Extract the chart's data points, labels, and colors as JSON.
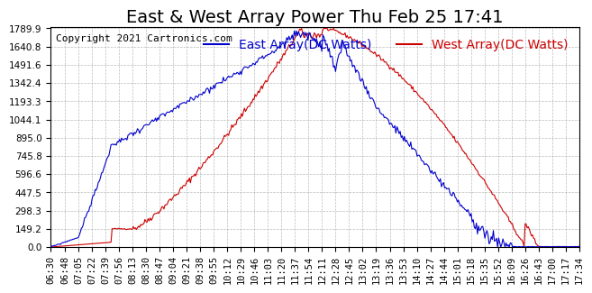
{
  "title": "East & West Array Power Thu Feb 25 17:41",
  "copyright": "Copyright 2021 Cartronics.com",
  "east_label": "East Array(DC Watts)",
  "west_label": "West Array(DC Watts)",
  "east_color": "#0000cc",
  "west_color": "#cc0000",
  "background_color": "#ffffff",
  "grid_color": "#aaaaaa",
  "yticks": [
    0.0,
    149.2,
    298.3,
    447.5,
    596.6,
    745.8,
    895.0,
    1044.1,
    1193.3,
    1342.4,
    1491.6,
    1640.8,
    1789.9
  ],
  "ymax": 1789.9,
  "ymin": 0.0,
  "title_fontsize": 14,
  "label_fontsize": 10,
  "tick_fontsize": 7.5,
  "copyright_fontsize": 8,
  "xtick_times": [
    "06:30",
    "06:48",
    "07:05",
    "07:22",
    "07:39",
    "07:56",
    "08:13",
    "08:30",
    "08:47",
    "09:04",
    "09:21",
    "09:38",
    "09:55",
    "10:12",
    "10:29",
    "10:46",
    "11:03",
    "11:20",
    "11:37",
    "11:54",
    "12:11",
    "12:28",
    "12:45",
    "13:02",
    "13:19",
    "13:36",
    "13:53",
    "14:10",
    "14:27",
    "14:44",
    "15:01",
    "15:18",
    "15:35",
    "15:52",
    "16:09",
    "16:26",
    "16:43",
    "17:00",
    "17:17",
    "17:34"
  ]
}
